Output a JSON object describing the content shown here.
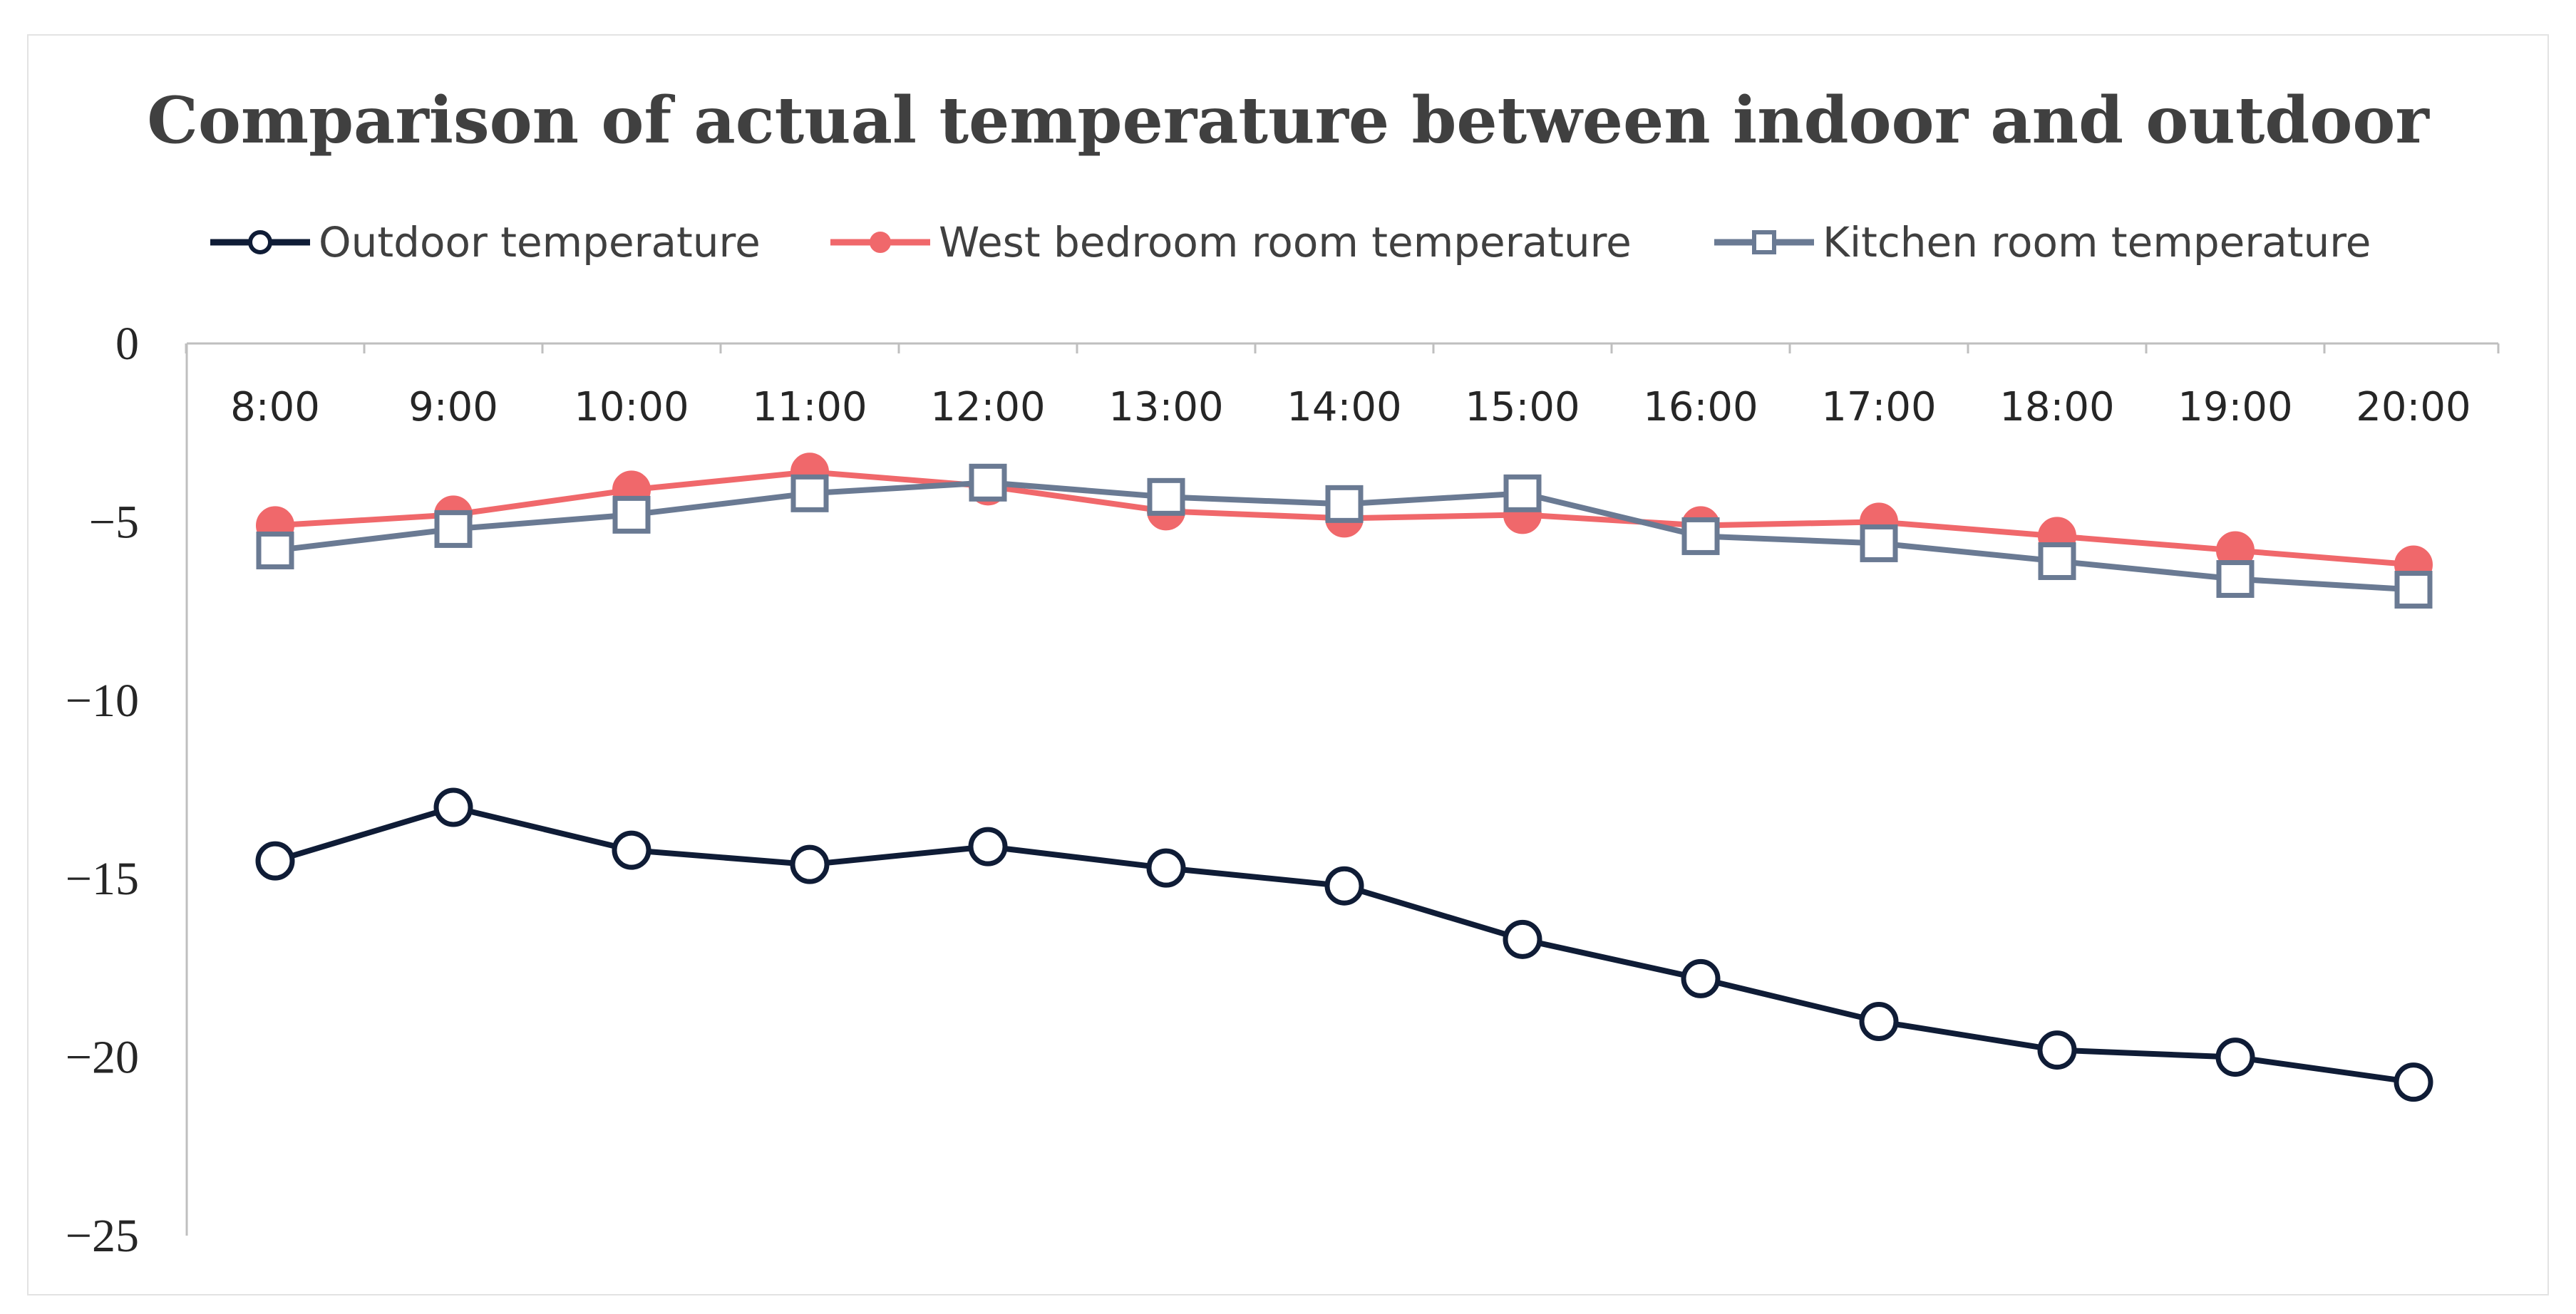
{
  "chart_data": {
    "type": "line",
    "title": "Comparison of actual temperature between indoor and outdoor",
    "xlabel": "",
    "ylabel": "",
    "categories": [
      "8:00",
      "9:00",
      "10:00",
      "11:00",
      "12:00",
      "13:00",
      "14:00",
      "15:00",
      "16:00",
      "17:00",
      "18:00",
      "19:00",
      "20:00"
    ],
    "ylim": [
      -25,
      0
    ],
    "yticks": [
      0,
      -5,
      -10,
      -15,
      -20,
      -25
    ],
    "ytick_labels": [
      "0",
      "−5",
      "−10",
      "−15",
      "−20",
      "−25"
    ],
    "x_axis_position": "top",
    "grid": false,
    "legend_position": "top",
    "series": [
      {
        "name": "Outdoor temperature",
        "color": "#0f1c36",
        "marker": "open-circle",
        "values": [
          -14.5,
          -13.0,
          -14.2,
          -14.6,
          -14.1,
          -14.7,
          -15.2,
          -16.7,
          -17.8,
          -19.0,
          -19.8,
          -20.0,
          -20.7
        ]
      },
      {
        "name": "West bedroom room temperature",
        "color": "#f0686b",
        "marker": "filled-circle",
        "values": [
          -5.1,
          -4.8,
          -4.1,
          -3.6,
          -4.0,
          -4.7,
          -4.9,
          -4.8,
          -5.1,
          -5.0,
          -5.4,
          -5.8,
          -6.2
        ]
      },
      {
        "name": "Kitchen room temperature",
        "color": "#6a7a93",
        "marker": "open-square",
        "values": [
          -5.8,
          -5.2,
          -4.8,
          -4.2,
          -3.9,
          -4.3,
          -4.5,
          -4.2,
          -5.4,
          -5.6,
          -6.1,
          -6.6,
          -6.9
        ]
      }
    ]
  }
}
